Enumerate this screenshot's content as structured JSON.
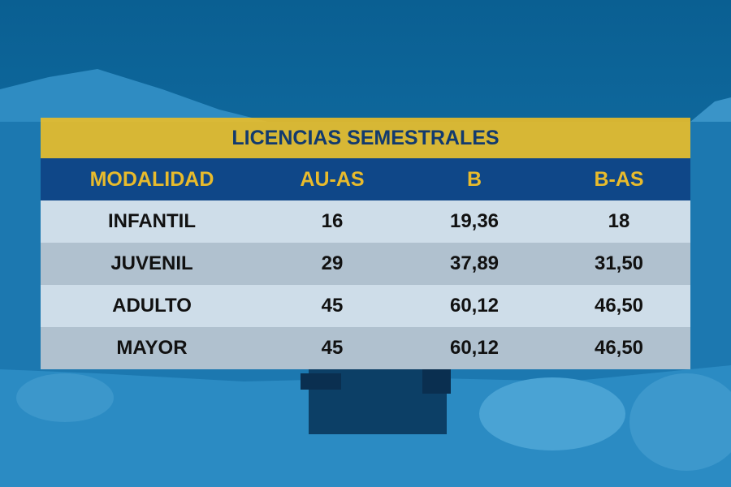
{
  "table": {
    "title": "LICENCIAS SEMESTRALES",
    "columns": [
      "MODALIDAD",
      "AU-AS",
      "B",
      "B-AS"
    ],
    "rows": [
      [
        "INFANTIL",
        "16",
        "19,36",
        "18"
      ],
      [
        "JUVENIL",
        "29",
        "37,89",
        "31,50"
      ],
      [
        "ADULTO",
        "45",
        "60,12",
        "46,50"
      ],
      [
        "MAYOR",
        "45",
        "60,12",
        "46,50"
      ]
    ]
  }
}
